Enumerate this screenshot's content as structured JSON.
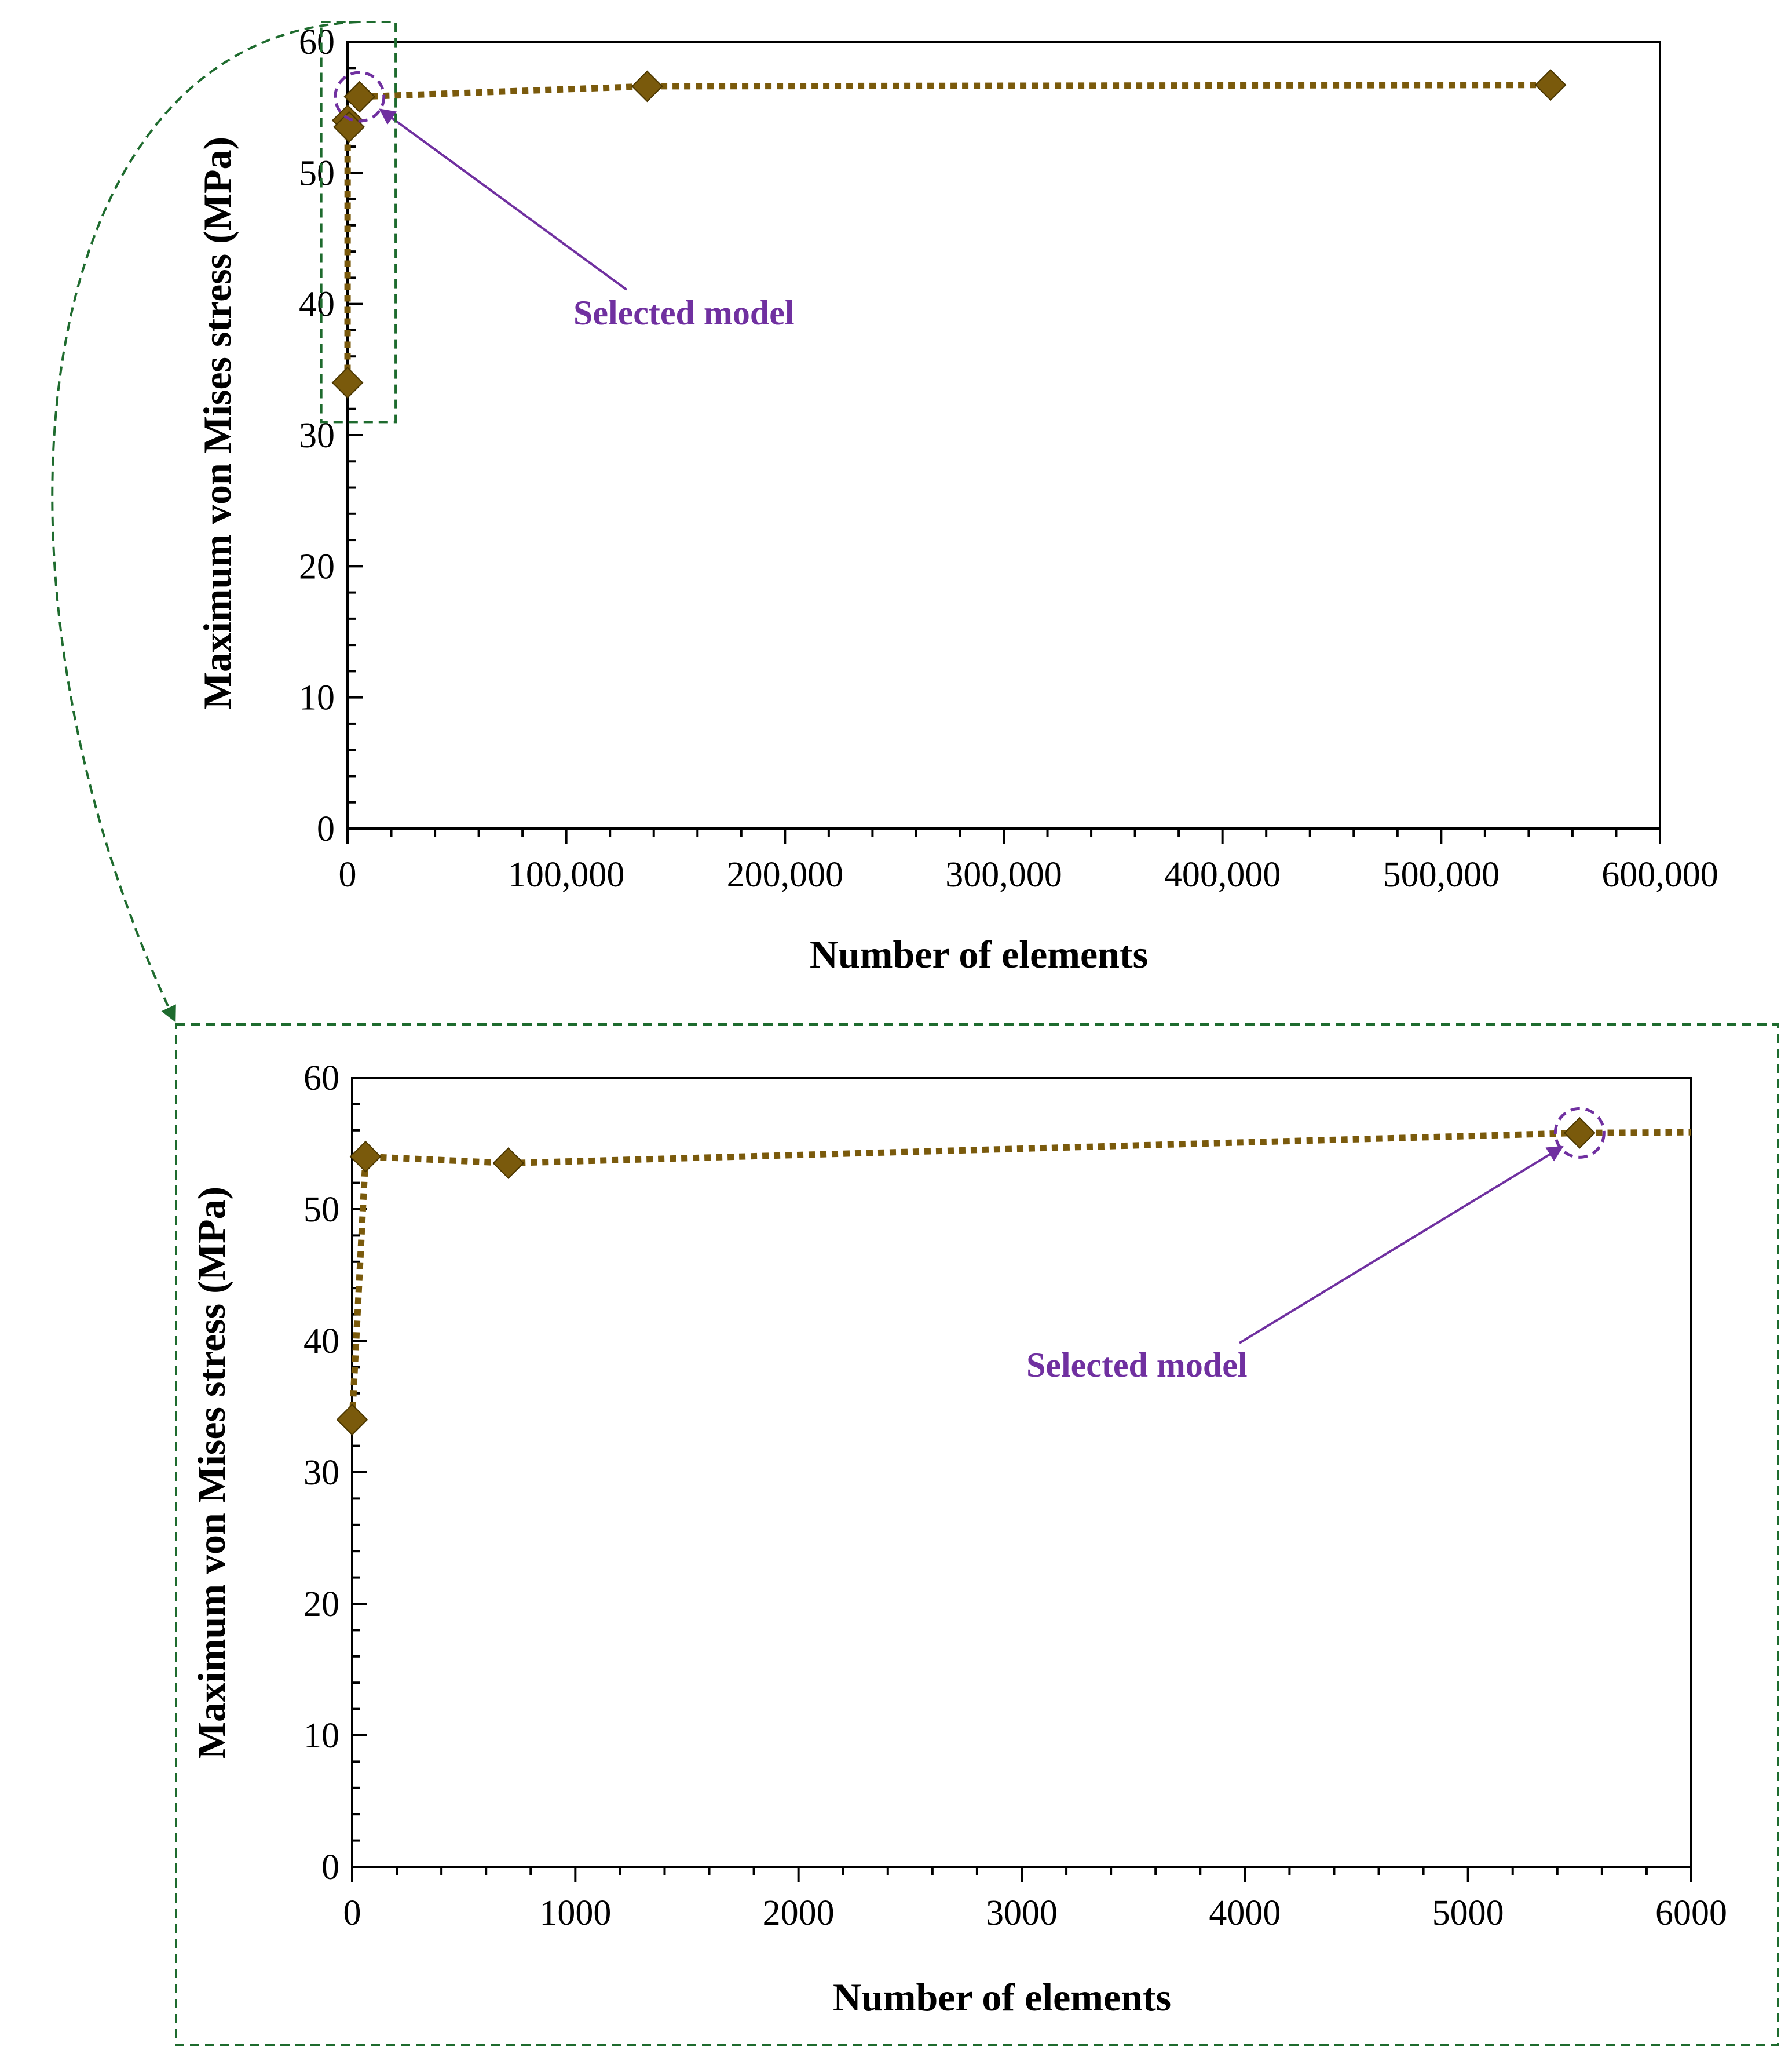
{
  "colors": {
    "series": "#7a5a0c",
    "annotation": "#7030a0",
    "zoom_box": "#1e6b2e",
    "axis": "#000000"
  },
  "chart_data": [
    {
      "type": "line",
      "title": "",
      "xlabel": "Number of elements",
      "ylabel": "Maximum von Mises stress (MPa)",
      "xlim": [
        0,
        600000
      ],
      "ylim": [
        0,
        60
      ],
      "xticks": [
        0,
        100000,
        200000,
        300000,
        400000,
        500000,
        600000
      ],
      "xtick_labels": [
        "0",
        "100,000",
        "200,000",
        "300,000",
        "400,000",
        "500,000",
        "600,000"
      ],
      "yticks": [
        0,
        10,
        20,
        30,
        40,
        50,
        60
      ],
      "ytick_labels": [
        "0",
        "10",
        "20",
        "30",
        "40",
        "50",
        "60"
      ],
      "grid": false,
      "series": [
        {
          "name": "Maximum von Mises stress",
          "marker": "diamond",
          "line_style": "dotted",
          "x": [
            0,
            60,
            700,
            5500,
            137000,
            550000
          ],
          "y": [
            34,
            54,
            53.5,
            55.8,
            56.6,
            56.7
          ]
        }
      ],
      "annotation": {
        "text": "Selected model",
        "x": 5500,
        "y": 55.8
      },
      "zoom_box": {
        "x": [
          -12000,
          22000
        ],
        "y": [
          31,
          61.5
        ]
      }
    },
    {
      "type": "line",
      "title": "",
      "xlabel": "Number of elements",
      "ylabel": "Maximum von Mises stress (MPa)",
      "xlim": [
        0,
        6000
      ],
      "ylim": [
        0,
        60
      ],
      "xticks": [
        0,
        1000,
        2000,
        3000,
        4000,
        5000,
        6000
      ],
      "xtick_labels": [
        "0",
        "1000",
        "2000",
        "3000",
        "4000",
        "5000",
        "6000"
      ],
      "yticks": [
        0,
        10,
        20,
        30,
        40,
        50,
        60
      ],
      "ytick_labels": [
        "0",
        "10",
        "20",
        "30",
        "40",
        "50",
        "60"
      ],
      "grid": false,
      "series": [
        {
          "name": "Maximum von Mises stress",
          "marker": "diamond",
          "line_style": "dotted",
          "x": [
            0,
            60,
            700,
            5500,
            6000
          ],
          "y": [
            34,
            54,
            53.5,
            55.8,
            55.85
          ],
          "marker_count": 4
        }
      ],
      "annotation": {
        "text": "Selected model",
        "x": 5500,
        "y": 55.8
      }
    }
  ]
}
